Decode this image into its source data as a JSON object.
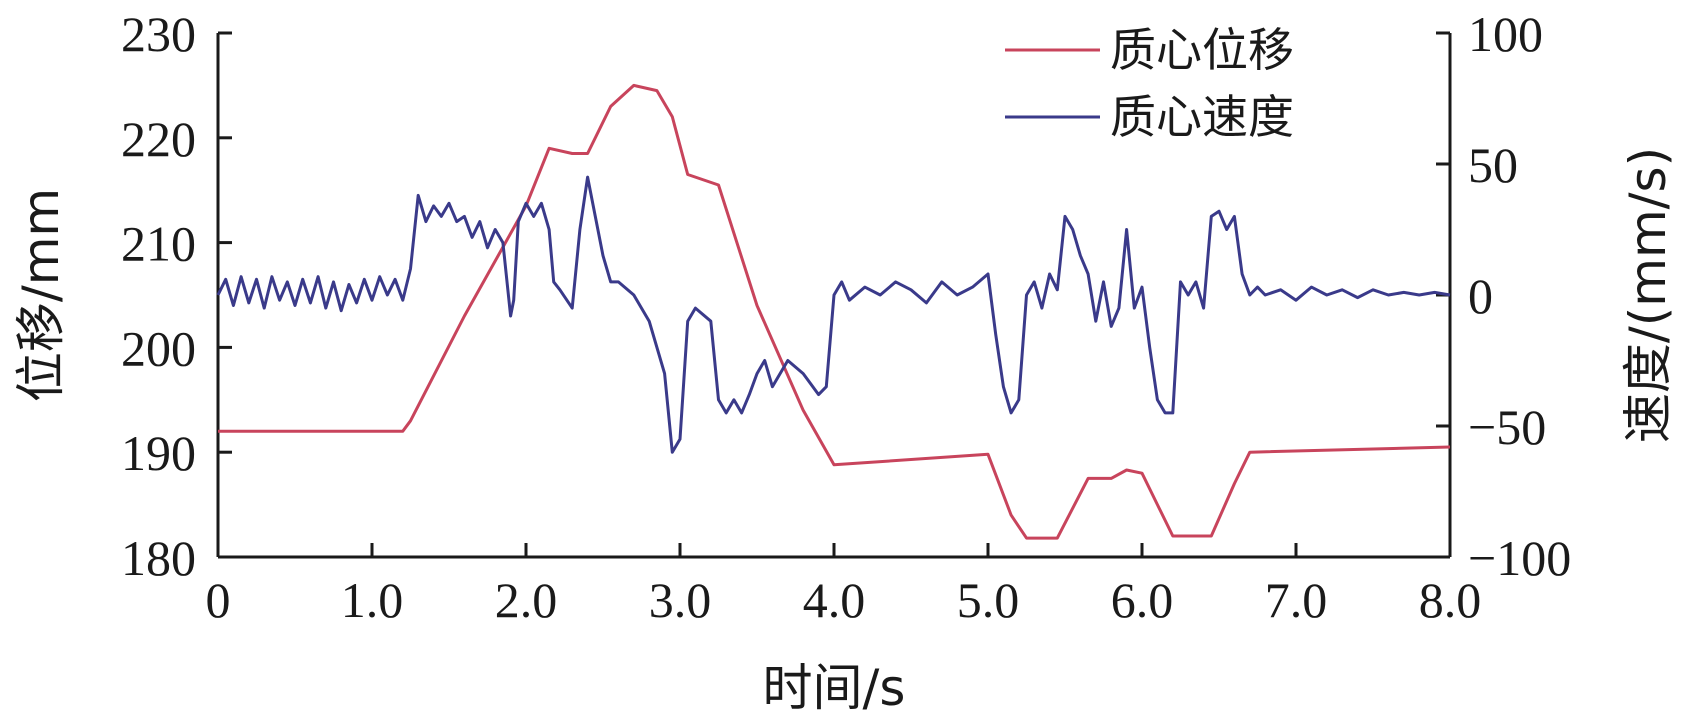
{
  "chart_data": {
    "type": "line",
    "xlabel": "时间/s",
    "ylabel_left": "位移/mm",
    "ylabel_right": "速度/(mm/s)",
    "xlim": [
      0,
      8
    ],
    "ylim_left": [
      180,
      230
    ],
    "ylim_right": [
      -100,
      100
    ],
    "x_ticks": [
      0,
      1,
      2,
      3,
      4,
      5,
      6,
      7,
      8
    ],
    "x_tick_labels": [
      "0",
      "1.0",
      "2.0",
      "3.0",
      "4.0",
      "5.0",
      "6.0",
      "7.0",
      "8.0"
    ],
    "y_left_ticks": [
      180,
      190,
      200,
      210,
      220,
      230
    ],
    "y_left_tick_labels": [
      "180",
      "190",
      "200",
      "210",
      "220",
      "230"
    ],
    "y_right_ticks": [
      -100,
      -50,
      0,
      50,
      100
    ],
    "y_right_tick_labels": [
      "−100",
      "−50",
      "0",
      "50",
      "100"
    ],
    "grid": false,
    "legend_position": "top-right",
    "series": [
      {
        "name": "质心位移",
        "axis": "left",
        "color": "#c8445c",
        "x": [
          0,
          1.2,
          1.25,
          1.6,
          2.0,
          2.15,
          2.3,
          2.4,
          2.55,
          2.7,
          2.85,
          2.95,
          3.05,
          3.25,
          3.5,
          3.8,
          4.0,
          5.0,
          5.15,
          5.25,
          5.45,
          5.65,
          5.8,
          5.9,
          6.0,
          6.1,
          6.2,
          6.45,
          6.6,
          6.7,
          8.0
        ],
        "values": [
          192.0,
          192.0,
          193.0,
          203.0,
          213.5,
          219.0,
          218.5,
          218.5,
          223.0,
          225.0,
          224.5,
          222.0,
          216.5,
          215.5,
          204.0,
          194.0,
          188.8,
          189.8,
          184.0,
          181.8,
          181.8,
          187.5,
          187.5,
          188.3,
          188.0,
          185.0,
          182.0,
          182.0,
          187.0,
          190.0,
          190.5
        ]
      },
      {
        "name": "质心速度",
        "axis": "right",
        "color": "#3a3a8a",
        "x": [
          0,
          0.05,
          0.1,
          0.15,
          0.2,
          0.25,
          0.3,
          0.35,
          0.4,
          0.45,
          0.5,
          0.55,
          0.6,
          0.65,
          0.7,
          0.75,
          0.8,
          0.85,
          0.9,
          0.95,
          1.0,
          1.05,
          1.1,
          1.15,
          1.2,
          1.25,
          1.3,
          1.35,
          1.4,
          1.45,
          1.5,
          1.55,
          1.6,
          1.65,
          1.7,
          1.75,
          1.8,
          1.85,
          1.9,
          1.92,
          1.95,
          2.0,
          2.05,
          2.1,
          2.15,
          2.18,
          2.22,
          2.3,
          2.35,
          2.4,
          2.45,
          2.5,
          2.55,
          2.6,
          2.7,
          2.8,
          2.9,
          2.95,
          3.0,
          3.05,
          3.1,
          3.2,
          3.25,
          3.3,
          3.35,
          3.4,
          3.45,
          3.5,
          3.55,
          3.6,
          3.7,
          3.8,
          3.9,
          3.95,
          4.0,
          4.05,
          4.1,
          4.2,
          4.3,
          4.4,
          4.5,
          4.6,
          4.7,
          4.8,
          4.9,
          5.0,
          5.05,
          5.1,
          5.15,
          5.2,
          5.25,
          5.3,
          5.35,
          5.4,
          5.45,
          5.5,
          5.55,
          5.6,
          5.65,
          5.7,
          5.75,
          5.8,
          5.85,
          5.9,
          5.95,
          6.0,
          6.05,
          6.1,
          6.15,
          6.2,
          6.25,
          6.3,
          6.35,
          6.4,
          6.45,
          6.5,
          6.55,
          6.6,
          6.65,
          6.7,
          6.75,
          6.8,
          6.9,
          7.0,
          7.1,
          7.2,
          7.3,
          7.4,
          7.5,
          7.6,
          7.7,
          7.8,
          7.9,
          8.0
        ],
        "values": [
          0,
          6,
          -4,
          7,
          -3,
          6,
          -5,
          7,
          -2,
          5,
          -4,
          6,
          -3,
          7,
          -5,
          5,
          -6,
          4,
          -3,
          6,
          -2,
          7,
          0,
          6,
          -2,
          10,
          38,
          28,
          34,
          30,
          35,
          28,
          30,
          22,
          28,
          18,
          25,
          20,
          -8,
          -2,
          28,
          35,
          30,
          35,
          25,
          5,
          2,
          -5,
          25,
          45,
          30,
          15,
          5,
          5,
          0,
          -10,
          -30,
          -60,
          -55,
          -10,
          -5,
          -10,
          -40,
          -45,
          -40,
          -45,
          -38,
          -30,
          -25,
          -35,
          -25,
          -30,
          -38,
          -35,
          0,
          5,
          -2,
          3,
          0,
          5,
          2,
          -3,
          5,
          0,
          3,
          8,
          -15,
          -35,
          -45,
          -40,
          0,
          5,
          -5,
          8,
          2,
          30,
          25,
          15,
          8,
          -10,
          5,
          -12,
          -5,
          25,
          -5,
          3,
          -20,
          -40,
          -45,
          -45,
          5,
          0,
          5,
          -5,
          30,
          32,
          25,
          30,
          8,
          0,
          3,
          0,
          2,
          -2,
          3,
          0,
          2,
          -1,
          2,
          0,
          1,
          0,
          1,
          0
        ]
      }
    ]
  }
}
